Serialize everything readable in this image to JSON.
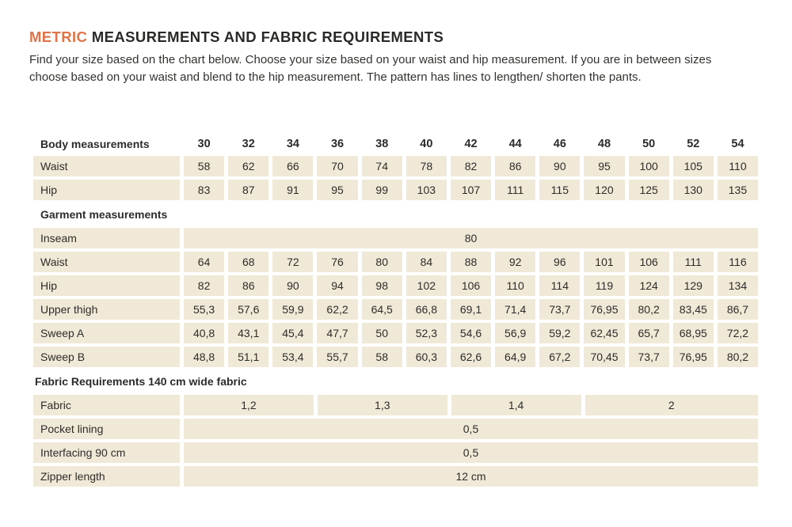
{
  "header": {
    "title_accent": "METRIC",
    "title_rest": " MEASUREMENTS AND FABRIC REQUIREMENTS",
    "description": "Find your size based on the chart below. Choose your size based on your waist and hip measurement. If you are in between sizes choose based on your waist and blend to the hip measurement. The pattern has lines to lengthen/ shorten the pants."
  },
  "colors": {
    "accent": "#DF7449",
    "cell_background": "#F1E9D8",
    "text": "#2D2C2A"
  },
  "table": {
    "size_header": {
      "label": "Body measurements",
      "sizes": [
        "30",
        "32",
        "34",
        "36",
        "38",
        "40",
        "42",
        "44",
        "46",
        "48",
        "50",
        "52",
        "54"
      ]
    },
    "body": {
      "waist": {
        "label": "Waist",
        "values": [
          "58",
          "62",
          "66",
          "70",
          "74",
          "78",
          "82",
          "86",
          "90",
          "95",
          "100",
          "105",
          "110"
        ]
      },
      "hip": {
        "label": "Hip",
        "values": [
          "83",
          "87",
          "91",
          "95",
          "99",
          "103",
          "107",
          "111",
          "115",
          "120",
          "125",
          "130",
          "135"
        ]
      }
    },
    "garment": {
      "section_label": "Garment measurements",
      "inseam": {
        "label": "Inseam",
        "value": "80"
      },
      "waist": {
        "label": "Waist",
        "values": [
          "64",
          "68",
          "72",
          "76",
          "80",
          "84",
          "88",
          "92",
          "96",
          "101",
          "106",
          "111",
          "116"
        ]
      },
      "hip": {
        "label": "Hip",
        "values": [
          "82",
          "86",
          "90",
          "94",
          "98",
          "102",
          "106",
          "110",
          "114",
          "119",
          "124",
          "129",
          "134"
        ]
      },
      "upper_thigh": {
        "label": "Upper thigh",
        "values": [
          "55,3",
          "57,6",
          "59,9",
          "62,2",
          "64,5",
          "66,8",
          "69,1",
          "71,4",
          "73,7",
          "76,95",
          "80,2",
          "83,45",
          "86,7"
        ]
      },
      "sweep_a": {
        "label": "Sweep A",
        "values": [
          "40,8",
          "43,1",
          "45,4",
          "47,7",
          "50",
          "52,3",
          "54,6",
          "56,9",
          "59,2",
          "62,45",
          "65,7",
          "68,95",
          "72,2"
        ]
      },
      "sweep_b": {
        "label": "Sweep B",
        "values": [
          "48,8",
          "51,1",
          "53,4",
          "55,7",
          "58",
          "60,3",
          "62,6",
          "64,9",
          "67,2",
          "70,45",
          "73,7",
          "76,95",
          "80,2"
        ]
      }
    },
    "fabric": {
      "section_label": "Fabric Requirements 140 cm wide fabric",
      "fabric_row": {
        "label": "Fabric",
        "cells": [
          {
            "value": "1,2",
            "sizes_spanned": "30–34"
          },
          {
            "value": "1,3",
            "sizes_spanned": "36–40"
          },
          {
            "value": "1,4",
            "sizes_spanned": "42–46"
          },
          {
            "value": "2",
            "sizes_spanned": "48–54"
          }
        ]
      },
      "pocket_lining": {
        "label": "Pocket lining",
        "value": "0,5"
      },
      "interfacing": {
        "label": "Interfacing 90 cm",
        "value": "0,5"
      },
      "zipper": {
        "label": "Zipper length",
        "value": "12 cm"
      }
    }
  }
}
